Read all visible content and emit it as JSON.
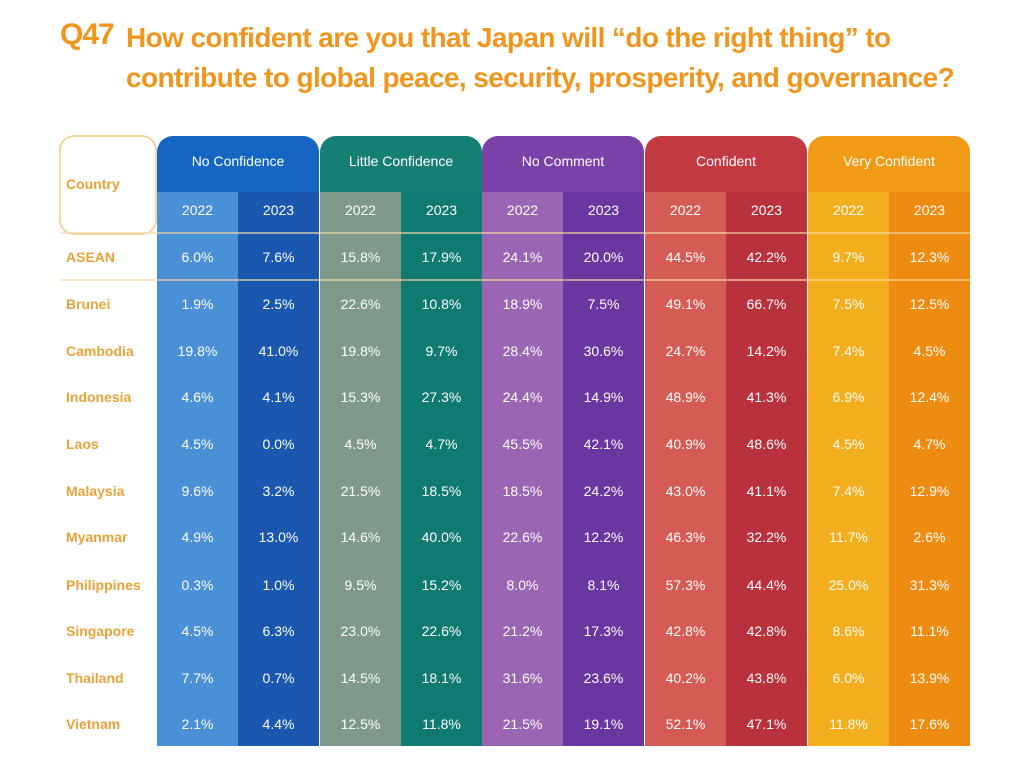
{
  "header": {
    "question_number": "Q47",
    "question_text": "How confident are you that Japan will “do the right thing” to contribute to global peace, security, prosperity, and governance?"
  },
  "colors": {
    "no_confidence": [
      "#4a90d6",
      "#1a58b0",
      "#1466c2"
    ],
    "little_confidence": [
      "#7f9a8a",
      "#0e7a70",
      "#157f74"
    ],
    "no_comment": [
      "#9a66b4",
      "#6a36a0",
      "#7a42a8"
    ],
    "confident": [
      "#d45c54",
      "#b8313c",
      "#c43a42"
    ],
    "very_confident": [
      "#f2ae1c",
      "#ee8c12",
      "#f09a16"
    ],
    "country_text": "#e8a23a"
  },
  "chart_data": {
    "type": "table",
    "country_column_label": "Country",
    "groups": [
      "No Confidence",
      "Little Confidence",
      "No Comment",
      "Confident",
      "Very Confident"
    ],
    "years": [
      "2022",
      "2023"
    ],
    "rows": [
      {
        "country": "ASEAN",
        "values": [
          "6.0%",
          "7.6%",
          "15.8%",
          "17.9%",
          "24.1%",
          "20.0%",
          "44.5%",
          "42.2%",
          "9.7%",
          "12.3%"
        ]
      },
      {
        "country": "Brunei",
        "values": [
          "1.9%",
          "2.5%",
          "22.6%",
          "10.8%",
          "18.9%",
          "7.5%",
          "49.1%",
          "66.7%",
          "7.5%",
          "12.5%"
        ]
      },
      {
        "country": "Cambodia",
        "values": [
          "19.8%",
          "41.0%",
          "19.8%",
          "9.7%",
          "28.4%",
          "30.6%",
          "24.7%",
          "14.2%",
          "7.4%",
          "4.5%"
        ]
      },
      {
        "country": "Indonesia",
        "values": [
          "4.6%",
          "4.1%",
          "15.3%",
          "27.3%",
          "24.4%",
          "14.9%",
          "48.9%",
          "41.3%",
          "6.9%",
          "12.4%"
        ]
      },
      {
        "country": "Laos",
        "values": [
          "4.5%",
          "0.0%",
          "4.5%",
          "4.7%",
          "45.5%",
          "42.1%",
          "40.9%",
          "48.6%",
          "4.5%",
          "4.7%"
        ]
      },
      {
        "country": "Malaysia",
        "values": [
          "9.6%",
          "3.2%",
          "21.5%",
          "18.5%",
          "18.5%",
          "24.2%",
          "43.0%",
          "41.1%",
          "7.4%",
          "12.9%"
        ]
      },
      {
        "country": "Myanmar",
        "values": [
          "4.9%",
          "13.0%",
          "14.6%",
          "40.0%",
          "22.6%",
          "12.2%",
          "46.3%",
          "32.2%",
          "11.7%",
          "2.6%"
        ]
      },
      {
        "country": "Philippines",
        "values": [
          "0.3%",
          "1.0%",
          "9.5%",
          "15.2%",
          "8.0%",
          "8.1%",
          "57.3%",
          "44.4%",
          "25.0%",
          "31.3%"
        ]
      },
      {
        "country": "Singapore",
        "values": [
          "4.5%",
          "6.3%",
          "23.0%",
          "22.6%",
          "21.2%",
          "17.3%",
          "42.8%",
          "42.8%",
          "8.6%",
          "11.1%"
        ]
      },
      {
        "country": "Thailand",
        "values": [
          "7.7%",
          "0.7%",
          "14.5%",
          "18.1%",
          "31.6%",
          "23.6%",
          "40.2%",
          "43.8%",
          "6.0%",
          "13.9%"
        ]
      },
      {
        "country": "Vietnam",
        "values": [
          "2.1%",
          "4.4%",
          "12.5%",
          "11.8%",
          "21.5%",
          "19.1%",
          "52.1%",
          "47.1%",
          "11.8%",
          "17.6%"
        ]
      }
    ]
  }
}
